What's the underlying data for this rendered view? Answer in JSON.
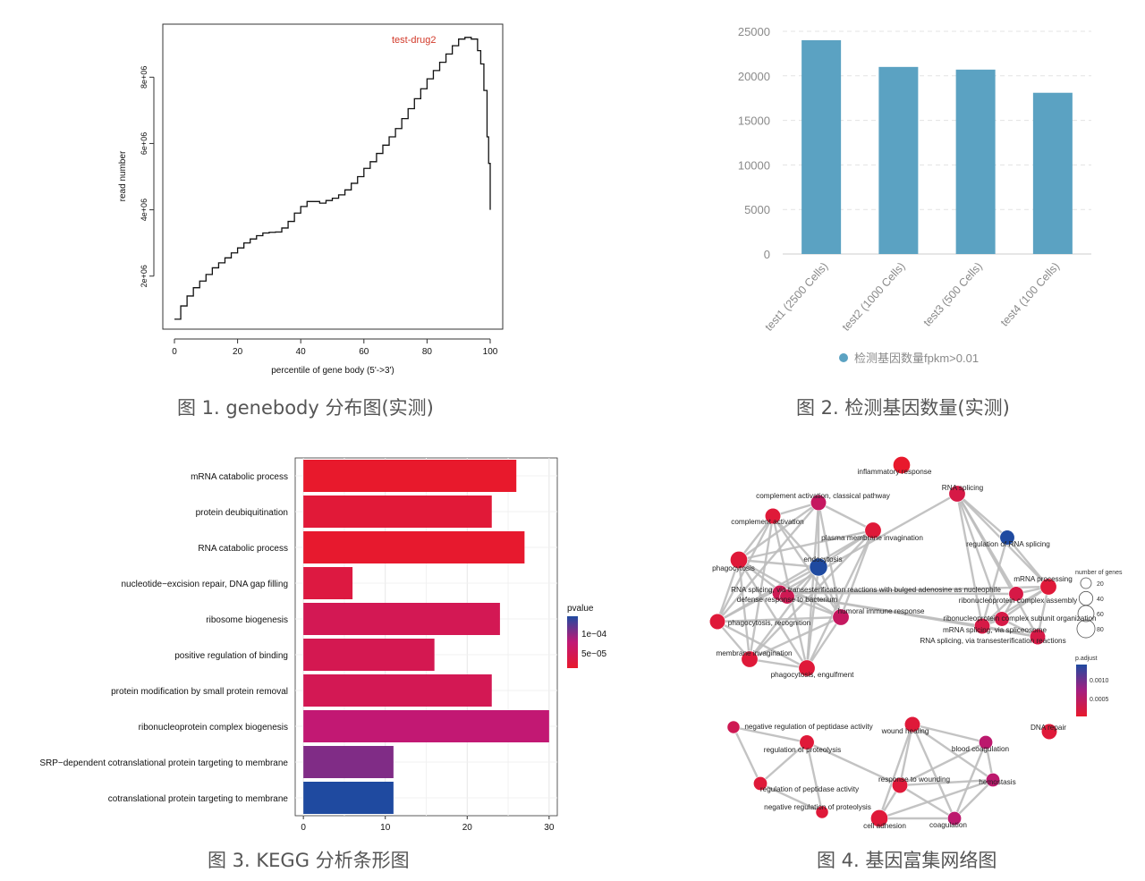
{
  "captions": {
    "fig1": "图 1. genebody 分布图(实测)",
    "fig2": "图 2. 检测基因数量(实测)",
    "fig3": "图 3. KEGG 分析条形图",
    "fig4": "图 4. 基因富集网络图"
  },
  "chart_data": [
    {
      "type": "line",
      "annotation": "test-drug2",
      "xlabel": "percentile of gene body (5'->3')",
      "ylabel": "read number",
      "xlim": [
        0,
        100
      ],
      "ylim": [
        400000,
        9600000
      ],
      "xticks": [
        "0",
        "20",
        "40",
        "60",
        "80",
        "100"
      ],
      "yticks": [
        "2e+06",
        "4e+06",
        "6e+06",
        "8e+06"
      ],
      "grid": false,
      "colors": {
        "line": "#111111",
        "annotation": "#d23a2a"
      },
      "x": [
        0,
        2,
        4,
        6,
        8,
        10,
        12,
        14,
        16,
        18,
        20,
        22,
        24,
        26,
        28,
        30,
        32,
        34,
        36,
        38,
        40,
        42,
        44,
        46,
        48,
        50,
        52,
        54,
        56,
        58,
        60,
        62,
        64,
        66,
        68,
        70,
        72,
        74,
        76,
        78,
        80,
        82,
        84,
        86,
        88,
        90,
        92,
        94,
        96,
        97,
        98,
        99,
        99.5,
        100
      ],
      "y": [
        700000,
        1100000,
        1400000,
        1650000,
        1850000,
        2050000,
        2250000,
        2400000,
        2550000,
        2700000,
        2850000,
        3000000,
        3120000,
        3220000,
        3300000,
        3320000,
        3330000,
        3450000,
        3650000,
        3900000,
        4100000,
        4250000,
        4250000,
        4200000,
        4280000,
        4350000,
        4450000,
        4600000,
        4800000,
        5000000,
        5250000,
        5450000,
        5700000,
        5950000,
        6200000,
        6450000,
        6750000,
        7050000,
        7350000,
        7650000,
        7950000,
        8200000,
        8450000,
        8700000,
        8950000,
        9150000,
        9200000,
        9150000,
        8800000,
        8400000,
        7600000,
        6200000,
        5400000,
        4000000
      ]
    },
    {
      "type": "bar",
      "categories": [
        "test1 (2500 Cells)",
        "test2 (1000 Cells)",
        "test3 (500 Cells)",
        "test4 (100 Cells)"
      ],
      "values": [
        24000,
        21000,
        20700,
        18100
      ],
      "ylim": [
        0,
        25000
      ],
      "yticks": [
        "0",
        "5000",
        "10000",
        "15000",
        "20000",
        "25000"
      ],
      "legend": "检测基因数量fpkm>0.01",
      "legend_position": "bottom",
      "grid": true,
      "colors": {
        "bar": "#5ba2c2",
        "text": "#8a8a8a"
      }
    },
    {
      "type": "bar",
      "orientation": "horizontal",
      "categories": [
        "mRNA catabolic process",
        "protein deubiquitination",
        "RNA catabolic process",
        "nucleotide−excision repair, DNA gap filling",
        "ribosome biogenesis",
        "positive regulation of binding",
        "protein modification by small protein removal",
        "ribonucleoprotein complex biogenesis",
        "SRP−dependent cotranslational protein targeting to membrane",
        "cotranslational protein targeting to membrane"
      ],
      "values": [
        26,
        23,
        27,
        6,
        24,
        16,
        23,
        30,
        11,
        11
      ],
      "pvalue": [
        8e-06,
        1.8e-05,
        1e-05,
        2.5e-05,
        4e-05,
        3.8e-05,
        4e-05,
        6.5e-05,
        9e-05,
        0.000125
      ],
      "xlim": [
        0,
        31
      ],
      "xticks": [
        "0",
        "10",
        "20",
        "30"
      ],
      "legend_title": "pvalue",
      "legend_ticks": [
        "1e−04",
        "5e−05"
      ],
      "legend_position": "right",
      "grid": true,
      "colors": {
        "low": "#e8192c",
        "mid": "#c11875",
        "high": "#1f4aa0",
        "panel": "#ffffff",
        "grid": "#ebebeb"
      }
    },
    {
      "type": "network",
      "nodes": [
        {
          "label": "inflammatory response",
          "p": 0.0,
          "genes": 40
        },
        {
          "label": "RNA splicing",
          "p": 0.0002,
          "genes": 35
        },
        {
          "label": "complement activation, classical pathway",
          "p": 0.0004,
          "genes": 30
        },
        {
          "label": "complement activation",
          "p": 0.0001,
          "genes": 30
        },
        {
          "label": "plasma membrane invagination",
          "p": 0.0001,
          "genes": 35
        },
        {
          "label": "regulation of RNA splicing",
          "p": 0.0012,
          "genes": 25
        },
        {
          "label": "phagocytosis",
          "p": 0.0001,
          "genes": 40
        },
        {
          "label": "endocytosis",
          "p": 0.0012,
          "genes": 45
        },
        {
          "label": "mRNA processing",
          "p": 0.0001,
          "genes": 35
        },
        {
          "label": "RNA splicing, via transesterification reactions with bulged adenosine as nucleophile",
          "p": 0.0003,
          "genes": 30
        },
        {
          "label": "defense response to bacterium",
          "p": 0.0003,
          "genes": 25
        },
        {
          "label": "ribonucleoprotein complex assembly",
          "p": 0.0002,
          "genes": 25
        },
        {
          "label": "humoral immune response",
          "p": 0.0004,
          "genes": 35
        },
        {
          "label": "phagocytosis, recognition",
          "p": 0.0001,
          "genes": 30
        },
        {
          "label": "ribonucleoprotein complex subunit organization",
          "p": 0.0002,
          "genes": 25
        },
        {
          "label": "mRNA splicing, via spliceosome",
          "p": 0.0002,
          "genes": 30
        },
        {
          "label": "RNA splicing, via transesterification reactions",
          "p": 0.0002,
          "genes": 30
        },
        {
          "label": "membrane invagination",
          "p": 0.0001,
          "genes": 35
        },
        {
          "label": "phagocytosis, engulfment",
          "p": 0.0001,
          "genes": 35
        },
        {
          "label": "negative regulation of peptidase activity",
          "p": 0.0003,
          "genes": 15
        },
        {
          "label": "wound healing",
          "p": 0.0001,
          "genes": 30
        },
        {
          "label": "DNA repair",
          "p": 0.0001,
          "genes": 30
        },
        {
          "label": "regulation of proteolysis",
          "p": 0.0001,
          "genes": 25
        },
        {
          "label": "blood coagulation",
          "p": 0.0005,
          "genes": 20
        },
        {
          "label": "response to wounding",
          "p": 0.0001,
          "genes": 30
        },
        {
          "label": "hemostasis",
          "p": 0.0005,
          "genes": 20
        },
        {
          "label": "regulation of peptidase activity",
          "p": 0.0001,
          "genes": 20
        },
        {
          "label": "negative regulation of proteolysis",
          "p": 0.0001,
          "genes": 15
        },
        {
          "label": "cell adhesion",
          "p": 0.0001,
          "genes": 40
        },
        {
          "label": "coagulation",
          "p": 0.0005,
          "genes": 20
        }
      ],
      "size_legend_title": "number of genes",
      "size_legend": [
        "20",
        "40",
        "60",
        "80"
      ],
      "color_legend_title": "p.adjust",
      "color_legend": [
        "0.0010",
        "0.0005"
      ],
      "colors": {
        "low": "#e8192c",
        "high": "#1f4aa0",
        "edge": "#bdbdbd"
      }
    }
  ]
}
